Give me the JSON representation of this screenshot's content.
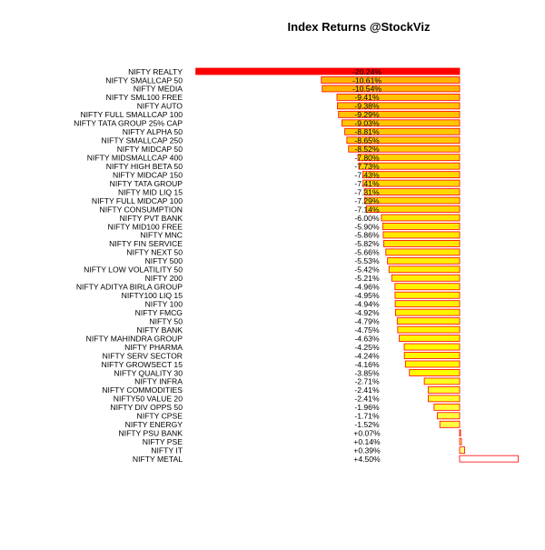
{
  "chart_data": {
    "type": "bar",
    "orientation": "horizontal",
    "title": "Index Returns @StockViz",
    "xlabel": "",
    "ylabel": "",
    "value_unit": "%",
    "grid": false,
    "legend": "none",
    "xlim": [
      -20.24,
      4.5
    ],
    "color_scale": [
      "#ff0000",
      "#ffa500",
      "#ffff00",
      "#ffffff"
    ],
    "bar_outline_color": "#ff0000",
    "categories": [
      "NIFTY REALTY",
      "NIFTY SMALLCAP 50",
      "NIFTY MEDIA",
      "NIFTY SML100 FREE",
      "NIFTY AUTO",
      "NIFTY FULL SMALLCAP 100",
      "NIFTY TATA GROUP 25% CAP",
      "NIFTY ALPHA 50",
      "NIFTY SMALLCAP 250",
      "NIFTY MIDCAP 50",
      "NIFTY MIDSMALLCAP 400",
      "NIFTY HIGH BETA 50",
      "NIFTY MIDCAP 150",
      "NIFTY TATA GROUP",
      "NIFTY MID LIQ 15",
      "NIFTY FULL MIDCAP 100",
      "NIFTY CONSUMPTION",
      "NIFTY PVT BANK",
      "NIFTY MID100 FREE",
      "NIFTY MNC",
      "NIFTY FIN SERVICE",
      "NIFTY NEXT 50",
      "NIFTY 500",
      "NIFTY LOW VOLATILITY 50",
      "NIFTY 200",
      "NIFTY ADITYA BIRLA GROUP",
      "NIFTY100 LIQ 15",
      "NIFTY 100",
      "NIFTY FMCG",
      "NIFTY 50",
      "NIFTY BANK",
      "NIFTY MAHINDRA GROUP",
      "NIFTY PHARMA",
      "NIFTY SERV SECTOR",
      "NIFTY GROWSECT 15",
      "NIFTY QUALITY 30",
      "NIFTY INFRA",
      "NIFTY COMMODITIES",
      "NIFTY50 VALUE 20",
      "NIFTY DIV OPPS 50",
      "NIFTY CPSE",
      "NIFTY ENERGY",
      "NIFTY PSU BANK",
      "NIFTY PSE",
      "NIFTY IT",
      "NIFTY METAL"
    ],
    "values": [
      -20.24,
      -10.61,
      -10.54,
      -9.41,
      -9.38,
      -9.29,
      -9.03,
      -8.81,
      -8.65,
      -8.52,
      -7.8,
      -7.73,
      -7.43,
      -7.41,
      -7.31,
      -7.29,
      -7.14,
      -6.0,
      -5.9,
      -5.86,
      -5.82,
      -5.66,
      -5.53,
      -5.42,
      -5.21,
      -4.96,
      -4.95,
      -4.94,
      -4.92,
      -4.79,
      -4.75,
      -4.63,
      -4.25,
      -4.24,
      -4.16,
      -3.85,
      -2.71,
      -2.41,
      -2.41,
      -1.96,
      -1.71,
      -1.52,
      0.07,
      0.14,
      0.39,
      4.5
    ],
    "value_labels": [
      "-20.24%",
      "-10.61%",
      "-10.54%",
      "-9.41%",
      "-9.38%",
      "-9.29%",
      "-9.03%",
      "-8.81%",
      "-8.65%",
      "-8.52%",
      "-7.80%",
      "-7.73%",
      "-7.43%",
      "-7.41%",
      "-7.31%",
      "-7.29%",
      "-7.14%",
      "-6.00%",
      "-5.90%",
      "-5.86%",
      "-5.82%",
      "-5.66%",
      "-5.53%",
      "-5.42%",
      "-5.21%",
      "-4.96%",
      "-4.95%",
      "-4.94%",
      "-4.92%",
      "-4.79%",
      "-4.75%",
      "-4.63%",
      "-4.25%",
      "-4.24%",
      "-4.16%",
      "-3.85%",
      "-2.71%",
      "-2.41%",
      "-2.41%",
      "-1.96%",
      "-1.71%",
      "-1.52%",
      "+0.07%",
      "+0.14%",
      "+0.39%",
      "+4.50%"
    ]
  }
}
